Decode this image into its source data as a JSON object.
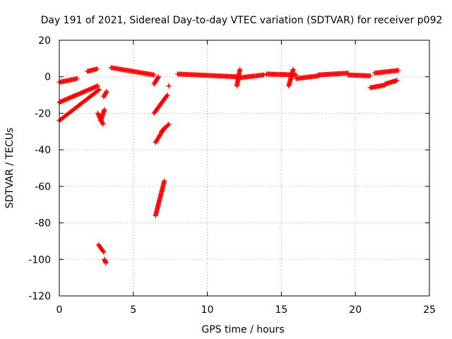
{
  "chart_data": {
    "type": "scatter",
    "title": "Day 191 of 2021, Sidereal Day-to-day VTEC variation (SDTVAR) for receiver p092",
    "xlabel": "GPS time / hours",
    "ylabel": "SDTVAR / TECUs",
    "xlim": [
      0,
      25
    ],
    "ylim": [
      -120,
      20
    ],
    "xticks": [
      0,
      5,
      10,
      15,
      20,
      25
    ],
    "yticks": [
      -120,
      -100,
      -80,
      -60,
      -40,
      -20,
      0,
      20
    ],
    "grid": true,
    "marker": "plus",
    "color": "#ff0000",
    "segments": [
      {
        "x": [
          0.0,
          1.2
        ],
        "y": [
          -3.0,
          -1.0
        ]
      },
      {
        "x": [
          0.0,
          2.6
        ],
        "y": [
          -14.0,
          -5.0
        ]
      },
      {
        "x": [
          0.0,
          2.7
        ],
        "y": [
          -24.0,
          -7.0
        ]
      },
      {
        "x": [
          1.9,
          2.55
        ],
        "y": [
          3.0,
          4.3
        ]
      },
      {
        "x": [
          2.6,
          2.95
        ],
        "y": [
          -20.0,
          -26.0
        ]
      },
      {
        "x": [
          2.8,
          3.05
        ],
        "y": [
          -24.0,
          -18.0
        ]
      },
      {
        "x": [
          3.0,
          3.2
        ],
        "y": [
          -11.0,
          -8.0
        ]
      },
      {
        "x": [
          2.65,
          3.0
        ],
        "y": [
          -92.0,
          -96.0
        ]
      },
      {
        "x": [
          3.05,
          3.15
        ],
        "y": [
          -100.0,
          -102.0
        ]
      },
      {
        "x": [
          3.5,
          6.4
        ],
        "y": [
          5.0,
          1.0
        ]
      },
      {
        "x": [
          6.4,
          6.7
        ],
        "y": [
          -4.0,
          0.0
        ]
      },
      {
        "x": [
          6.4,
          7.3
        ],
        "y": [
          -20.0,
          -10.0
        ]
      },
      {
        "x": [
          6.5,
          7.1
        ],
        "y": [
          -36.0,
          -28.0
        ]
      },
      {
        "x": [
          6.9,
          7.4
        ],
        "y": [
          -30.0,
          -26.0
        ]
      },
      {
        "x": [
          6.5,
          7.1
        ],
        "y": [
          -76.0,
          -57.0
        ]
      },
      {
        "x": [
          7.4,
          7.4
        ],
        "y": [
          -5.0,
          -5.0
        ]
      },
      {
        "x": [
          8.0,
          12.0
        ],
        "y": [
          1.5,
          0.0
        ]
      },
      {
        "x": [
          12.0,
          12.2
        ],
        "y": [
          -5.0,
          4.0
        ]
      },
      {
        "x": [
          12.2,
          13.8
        ],
        "y": [
          -0.5,
          1.0
        ]
      },
      {
        "x": [
          14.0,
          16.0
        ],
        "y": [
          1.5,
          1.0
        ]
      },
      {
        "x": [
          15.5,
          15.8
        ],
        "y": [
          -5.0,
          4.0
        ]
      },
      {
        "x": [
          16.0,
          17.5
        ],
        "y": [
          -1.0,
          0.5
        ]
      },
      {
        "x": [
          17.5,
          19.5
        ],
        "y": [
          1.0,
          2.0
        ]
      },
      {
        "x": [
          19.5,
          21.0
        ],
        "y": [
          1.0,
          0.5
        ]
      },
      {
        "x": [
          21.0,
          22.0
        ],
        "y": [
          -6.0,
          -4.5
        ]
      },
      {
        "x": [
          22.0,
          22.8
        ],
        "y": [
          -4.0,
          -2.0
        ]
      },
      {
        "x": [
          21.3,
          22.9
        ],
        "y": [
          2.0,
          3.5
        ]
      }
    ]
  }
}
